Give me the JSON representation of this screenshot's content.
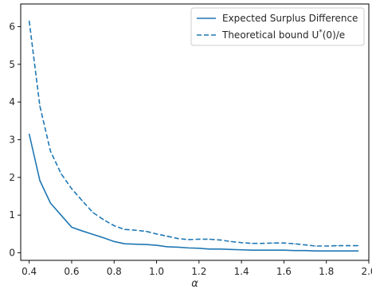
{
  "chart_data": {
    "type": "line",
    "title": "",
    "xlabel": "α",
    "ylabel": "",
    "xlim": [
      0.36,
      2.0
    ],
    "ylim": [
      -0.2,
      6.6
    ],
    "xticks": [
      0.4,
      0.6,
      0.8,
      1.0,
      1.2,
      1.4,
      1.6,
      1.8,
      2.0
    ],
    "xtick_labels": [
      "0.4",
      "0.6",
      "0.8",
      "1.0",
      "1.2",
      "1.4",
      "1.6",
      "1.8",
      "2.0"
    ],
    "yticks": [
      0,
      1,
      2,
      3,
      4,
      5,
      6
    ],
    "ytick_labels": [
      "0",
      "1",
      "2",
      "3",
      "4",
      "5",
      "6"
    ],
    "grid": false,
    "legend_position": "top-right",
    "x": [
      0.4,
      0.45,
      0.5,
      0.55,
      0.6,
      0.65,
      0.7,
      0.75,
      0.8,
      0.85,
      0.9,
      0.95,
      1.0,
      1.05,
      1.1,
      1.15,
      1.2,
      1.25,
      1.3,
      1.35,
      1.4,
      1.45,
      1.5,
      1.55,
      1.6,
      1.65,
      1.7,
      1.75,
      1.8,
      1.85,
      1.9,
      1.95
    ],
    "series": [
      {
        "name": "Expected Surplus Difference",
        "style": "solid",
        "color": "#1f77b4",
        "values": [
          3.15,
          1.92,
          1.32,
          1.0,
          0.68,
          0.58,
          0.49,
          0.4,
          0.3,
          0.24,
          0.23,
          0.22,
          0.2,
          0.16,
          0.15,
          0.13,
          0.12,
          0.1,
          0.1,
          0.09,
          0.08,
          0.07,
          0.07,
          0.07,
          0.07,
          0.06,
          0.06,
          0.05,
          0.05,
          0.05,
          0.05,
          0.05
        ]
      },
      {
        "name": "Theoretical bound U*(0)/e",
        "style": "dashed",
        "color": "#1f77b4",
        "values": [
          6.15,
          3.9,
          2.7,
          2.1,
          1.7,
          1.38,
          1.07,
          0.88,
          0.72,
          0.62,
          0.6,
          0.57,
          0.5,
          0.44,
          0.38,
          0.35,
          0.36,
          0.36,
          0.34,
          0.3,
          0.27,
          0.25,
          0.25,
          0.26,
          0.26,
          0.24,
          0.21,
          0.18,
          0.18,
          0.19,
          0.19,
          0.19
        ]
      }
    ]
  },
  "legend": {
    "entries": [
      {
        "label": "Expected Surplus Difference"
      },
      {
        "label_main": "Theoretical bound U",
        "label_sup": "*",
        "label_tail": "(0)/e"
      }
    ]
  }
}
